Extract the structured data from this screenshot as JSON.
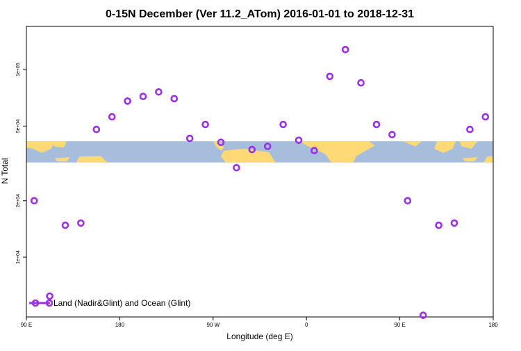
{
  "chart_data": {
    "type": "scatter",
    "title": "0-15N December (Ver 11.2_ATom)   2016-01-01 to 2018-12-31",
    "xlabel": "Longitude (deg E)",
    "ylabel": "N Total",
    "x_ticks": [
      {
        "value": 90,
        "label": "90 E"
      },
      {
        "value": 180,
        "label": "180"
      },
      {
        "value": 270,
        "label": "90 W"
      },
      {
        "value": 360,
        "label": "0"
      },
      {
        "value": 450,
        "label": "90 E"
      },
      {
        "value": 540,
        "label": "180"
      }
    ],
    "y_ticks": [
      {
        "value": 10000,
        "label": "1e+04"
      },
      {
        "value": 20000,
        "label": "2e+04"
      },
      {
        "value": 50000,
        "label": "5e+04"
      },
      {
        "value": 100000,
        "label": "1e+05"
      }
    ],
    "xlim": [
      90,
      540
    ],
    "ylim": [
      4800,
      170000
    ],
    "y_scale": "log",
    "grid": false,
    "legend_position": "bottom-left",
    "band_ylim": [
      32000,
      41500
    ],
    "colors": {
      "series": "#9b30e6",
      "ocean": "#a6bddb",
      "land": "#fed976"
    },
    "series": [
      {
        "name": "Land (Nadir&Glint) and Ocean (Glint)",
        "x": [
          97.5,
          112.5,
          127.5,
          142.5,
          157.5,
          172.5,
          187.5,
          202.5,
          217.5,
          232.5,
          247.5,
          262.5,
          277.5,
          292.5,
          307.5,
          322.5,
          337.5,
          352.5,
          367.5,
          382.5,
          397.5,
          412.5,
          427.5,
          442.5,
          457.5,
          472.5,
          487.5,
          502.5,
          517.5,
          532.5
        ],
        "y": [
          20000,
          6200,
          14800,
          15200,
          48000,
          56000,
          68000,
          72000,
          76000,
          70000,
          43000,
          51000,
          41000,
          30000,
          37500,
          39000,
          51000,
          42000,
          37000,
          92000,
          128000,
          85000,
          51000,
          45000,
          20000,
          4900,
          14800,
          15200,
          48000,
          56000
        ]
      }
    ]
  }
}
